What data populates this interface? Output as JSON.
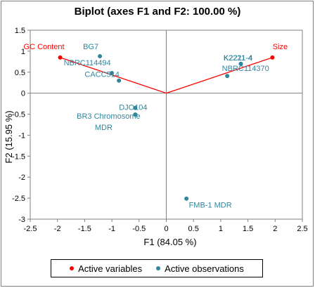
{
  "chart_data": {
    "type": "scatter",
    "title": "Biplot (axes F1 and F2: 100.00 %)",
    "xlabel": "F1 (84.05 %)",
    "ylabel": "F2 (15.95 %)",
    "xlim": [
      -2.5,
      2.5
    ],
    "ylim": [
      -3,
      1.5
    ],
    "xticks": [
      -2.5,
      -2,
      -1.5,
      -1,
      -0.5,
      0,
      0.5,
      1,
      1.5,
      2,
      2.5
    ],
    "yticks": [
      -3,
      -2.5,
      -2,
      -1.5,
      -1,
      -0.5,
      0,
      0.5,
      1,
      1.5
    ],
    "xtick_labels": [
      "-2.5",
      "-2",
      "-1.5",
      "-1",
      "-0.5",
      "0",
      "0.5",
      "1",
      "1.5",
      "2",
      "2.5"
    ],
    "ytick_labels": [
      "-3",
      "-2.5",
      "-2",
      "-1.5",
      "-1",
      "-0.5",
      "0",
      "0.5",
      "1",
      "1.5"
    ],
    "grid": false,
    "legend_position": "bottom",
    "variables": {
      "name": "Active variables",
      "color": "#ff0000",
      "points": [
        {
          "label": "GC Content",
          "x": -1.95,
          "y": 0.85
        },
        {
          "label": "Size",
          "x": 1.95,
          "y": 0.85
        }
      ]
    },
    "observations": {
      "name": "Active observations",
      "color": "#31859c",
      "points": [
        {
          "label": "BG7",
          "x": -1.22,
          "y": 0.88
        },
        {
          "label": "NBRC114494",
          "x": -1.0,
          "y": 0.48
        },
        {
          "label": "CACC514",
          "x": -0.87,
          "y": 0.3
        },
        {
          "label": "DJO104",
          "x": -0.57,
          "y": -0.35
        },
        {
          "label": "BR3 Chromosome",
          "x": -0.57,
          "y": -0.51
        },
        {
          "label": "MDR",
          "x": -0.57,
          "y": -0.51
        },
        {
          "label": "K2221-4",
          "x": 1.37,
          "y": 0.7
        },
        {
          "label": "K2211-4",
          "x": 1.37,
          "y": 0.7
        },
        {
          "label": "NBRC114370",
          "x": 1.12,
          "y": 0.41
        },
        {
          "label": "FMB-1 MDR",
          "x": 0.37,
          "y": -2.51
        }
      ]
    }
  }
}
